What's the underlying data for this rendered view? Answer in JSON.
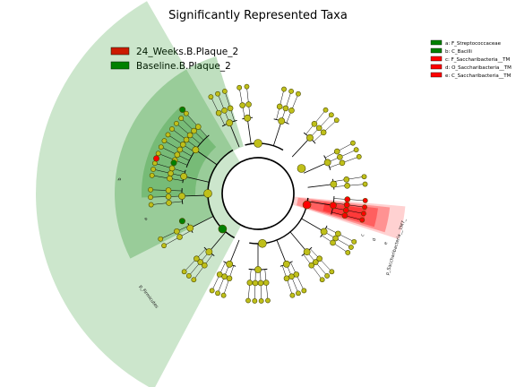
{
  "chart_data": {
    "type": "cladogram",
    "title": "Significantly Represented Taxa",
    "legend_main": [
      {
        "label": "24_Weeks.B.Plaque_2",
        "color": "#ff0000"
      },
      {
        "label": "Baseline.B.Plaque_2",
        "color": "#008000"
      }
    ],
    "legend_biomarkers": [
      {
        "label": "a: F_Streptococcaceae",
        "color": "#008000"
      },
      {
        "label": "b: C_Bacilli",
        "color": "#008000"
      },
      {
        "label": "c: F_Saccharibacteria__TM",
        "color": "#ff0000"
      },
      {
        "label": "d: O_Saccharibacteria__TM",
        "color": "#ff0000"
      },
      {
        "label": "e: C_Saccharibacteria__TM",
        "color": "#ff0000"
      }
    ],
    "sector_labels": [
      {
        "text": "p_Firmicutes",
        "group": "Baseline.B.Plaque_2"
      },
      {
        "text": "p_Saccharibacteria__TM7_",
        "group": "24_Weeks.B.Plaque_2"
      },
      {
        "text": "a"
      },
      {
        "text": "b"
      },
      {
        "text": "c"
      },
      {
        "text": "d"
      },
      {
        "text": "e"
      }
    ],
    "colors": {
      "neutral_node": "#bfbf1a",
      "baseline": "#008000",
      "weeks24": "#ff0000"
    },
    "clades": [
      {
        "a": 130,
        "w": 10,
        "p": "",
        "z": ""
      },
      {
        "a": 153,
        "w": 8,
        "p": "",
        "z": ""
      },
      {
        "a": 178,
        "w": 12,
        "p": "",
        "z": ""
      },
      {
        "a": 193,
        "w": 10,
        "p": "",
        "z": ""
      },
      {
        "a": 215,
        "w": 30,
        "p": "",
        "z": ""
      },
      {
        "a": 248,
        "w": 12,
        "p": "",
        "z": ""
      },
      {
        "a": 262,
        "w": 8,
        "p": "",
        "z": ""
      },
      {
        "a": 288,
        "w": 12,
        "p": "",
        "z": ""
      },
      {
        "a": 313,
        "w": 12,
        "p": "",
        "z": ""
      },
      {
        "a": 336,
        "w": 12,
        "p": "",
        "z": ""
      },
      {
        "a": 353,
        "w": 8,
        "p": "",
        "z": ""
      },
      {
        "a": 9,
        "w": 14,
        "p": "weeks24",
        "z": "weeks24"
      },
      {
        "a": 30,
        "w": 10,
        "p": "",
        "z": ""
      },
      {
        "a": 50,
        "w": 10,
        "p": "",
        "z": ""
      },
      {
        "a": 68,
        "w": 10,
        "p": "",
        "z": ""
      },
      {
        "a": 90,
        "w": 14,
        "p": "",
        "z": ""
      },
      {
        "a": 112,
        "w": 10,
        "p": "",
        "z": ""
      }
    ]
  }
}
